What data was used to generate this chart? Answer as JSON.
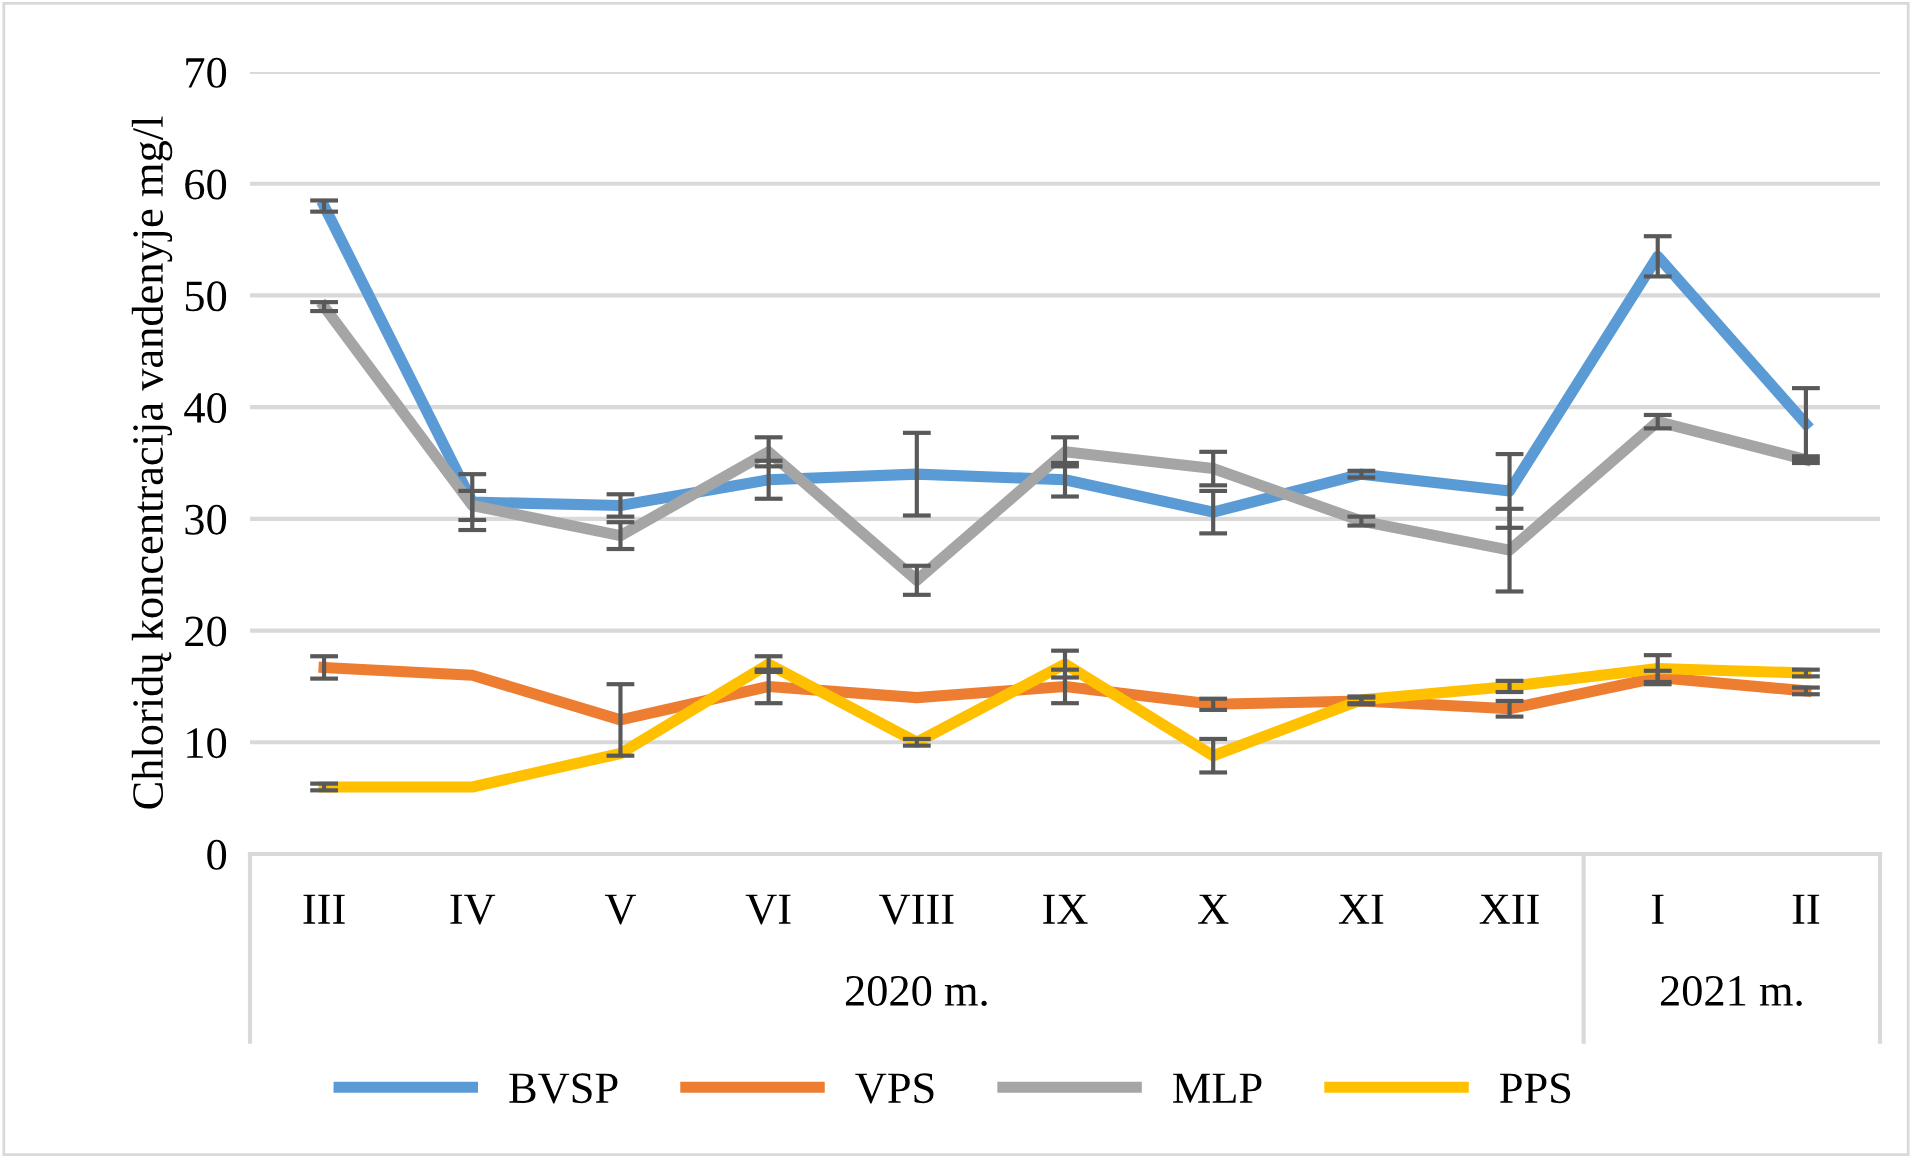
{
  "chart_data": {
    "type": "line",
    "ylabel": "Chloridų koncentracija vandenyje mg/l",
    "categories": [
      "III",
      "IV",
      "V",
      "VI",
      "VIII",
      "IX",
      "X",
      "XI",
      "XII",
      "I",
      "II"
    ],
    "annotations": [
      "2020 m.",
      "2021 m."
    ],
    "ylim": [
      0,
      70
    ],
    "yticks": [
      0,
      10,
      20,
      30,
      40,
      50,
      60,
      70
    ],
    "grid": "y",
    "legend": "bottom",
    "marker": "none",
    "line_style": "solid",
    "series": [
      {
        "name": "BVSP",
        "color": "#5b9bd5",
        "values": [
          58,
          31.5,
          31.2,
          33.5,
          34,
          33.5,
          30.6,
          34,
          32.5,
          53.5,
          38.5
        ],
        "errors": [
          0.5,
          2.5,
          1,
          1.7,
          3.7,
          1.5,
          1.9,
          0.3,
          3.3,
          1.8,
          3.2
        ]
      },
      {
        "name": "VPS",
        "color": "#ed7d31",
        "values": [
          16.7,
          16,
          12,
          15,
          14,
          15,
          13.4,
          13.7,
          13,
          15.8,
          14.6
        ],
        "errors": [
          1,
          null,
          3.2,
          1.5,
          null,
          1.5,
          0.5,
          0.3,
          0.7,
          0.6,
          0.3
        ]
      },
      {
        "name": "MLP",
        "color": "#a5a5a5",
        "values": [
          49,
          31.2,
          28.5,
          36,
          24.5,
          36,
          34.5,
          29.8,
          27.2,
          38.7,
          35.3
        ],
        "errors": [
          0.4,
          1.3,
          1.2,
          1.3,
          1.3,
          1.3,
          1.5,
          0.4,
          3.7,
          0.6,
          0.3
        ]
      },
      {
        "name": "PPS",
        "color": "#ffc000",
        "values": [
          6,
          6,
          9,
          17,
          10,
          17,
          8.8,
          13.8,
          15,
          16.6,
          16.2
        ],
        "errors": [
          0.3,
          null,
          null,
          0.7,
          0.3,
          1.2,
          1.5,
          0.3,
          0.5,
          1.2,
          0.3
        ]
      }
    ]
  }
}
